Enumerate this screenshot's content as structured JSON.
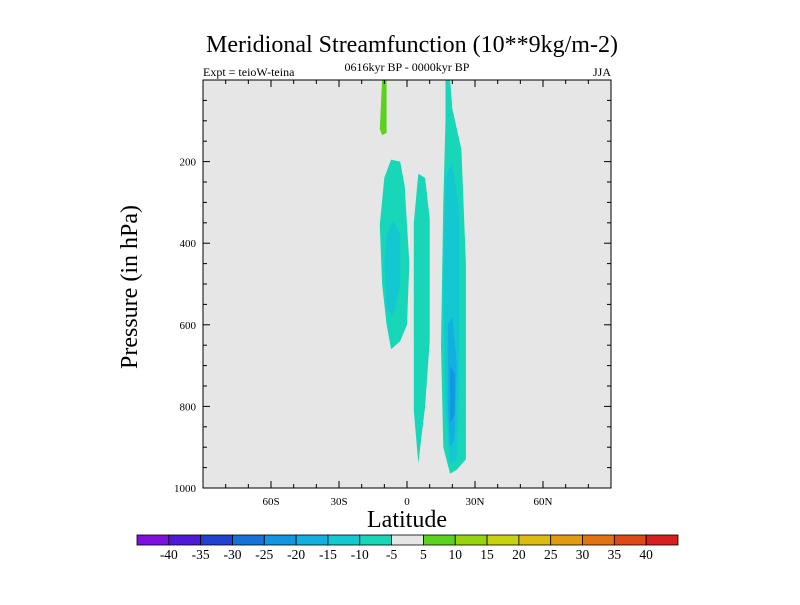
{
  "chart_data": {
    "type": "heatmap",
    "title": "Meridional Streamfunction (10**9kg/m-2)",
    "left_label": "Expt = teioW-teina",
    "center_label": "0616kyr BP - 0000kyr BP",
    "right_label": "JJA",
    "xlabel": "Latitude",
    "ylabel": "Pressure (in hPa)",
    "xlim": [
      -90,
      90
    ],
    "ylim": [
      1000,
      0
    ],
    "x_ticks": [
      {
        "value": -60,
        "label": "60S"
      },
      {
        "value": -30,
        "label": "30S"
      },
      {
        "value": 0,
        "label": "0"
      },
      {
        "value": 30,
        "label": "30N"
      },
      {
        "value": 60,
        "label": "60N"
      }
    ],
    "y_ticks": [
      {
        "value": 200,
        "label": "200"
      },
      {
        "value": 400,
        "label": "400"
      },
      {
        "value": 600,
        "label": "600"
      },
      {
        "value": 800,
        "label": "800"
      },
      {
        "value": 1000,
        "label": "1000"
      }
    ],
    "background_color": "#e6e6e6",
    "contour_levels": [
      -40,
      -35,
      -30,
      -25,
      -20,
      -15,
      -10,
      -5,
      5,
      10,
      15,
      20,
      25,
      30,
      35,
      40
    ],
    "colorbar_colors": [
      "#7f10e0",
      "#4f1ad6",
      "#2240d2",
      "#1672d8",
      "#1296e2",
      "#12b0e0",
      "#14c8d2",
      "#18d6b8",
      "#e6e6e6",
      "#5ad21e",
      "#96d40e",
      "#c8d20e",
      "#dcbc10",
      "#e29a10",
      "#e27212",
      "#e04816",
      "#d81e1e"
    ],
    "regions": [
      {
        "name": "positive-cell-north-of-equator-upper",
        "fill": "#5ad21e",
        "points": [
          [
            -11,
            0
          ],
          [
            -9,
            0
          ],
          [
            -9,
            130
          ],
          [
            -11,
            135
          ],
          [
            -12,
            120
          ]
        ]
      },
      {
        "name": "negative-cell-southern",
        "fill": "#18d6b8",
        "points": [
          [
            -12,
            355
          ],
          [
            -10,
            240
          ],
          [
            -7,
            195
          ],
          [
            -3,
            200
          ],
          [
            -1,
            260
          ],
          [
            1,
            450
          ],
          [
            0,
            600
          ],
          [
            -3,
            640
          ],
          [
            -7,
            660
          ],
          [
            -9,
            600
          ],
          [
            -11,
            500
          ]
        ]
      },
      {
        "name": "negative-cell-southern-core",
        "fill": "#14c8d2",
        "points": [
          [
            -10,
            450
          ],
          [
            -9,
            380
          ],
          [
            -6,
            345
          ],
          [
            -3,
            380
          ],
          [
            -3,
            500
          ],
          [
            -6,
            580
          ],
          [
            -9,
            560
          ]
        ]
      },
      {
        "name": "negative-cell-central",
        "fill": "#18d6b8",
        "points": [
          [
            3,
            350
          ],
          [
            5,
            230
          ],
          [
            8,
            240
          ],
          [
            10,
            340
          ],
          [
            10,
            640
          ],
          [
            8,
            800
          ],
          [
            5,
            940
          ],
          [
            3,
            810
          ]
        ]
      },
      {
        "name": "negative-cell-northern",
        "fill": "#18d6b8",
        "points": [
          [
            17,
            0
          ],
          [
            19,
            0
          ],
          [
            20,
            70
          ],
          [
            24,
            170
          ],
          [
            26,
            450
          ],
          [
            26,
            930
          ],
          [
            22,
            955
          ],
          [
            19,
            965
          ],
          [
            16,
            900
          ],
          [
            15,
            650
          ],
          [
            16,
            300
          ],
          [
            17,
            100
          ]
        ]
      },
      {
        "name": "negative-cell-northern-mid",
        "fill": "#14c8d2",
        "points": [
          [
            17,
            240
          ],
          [
            20,
            200
          ],
          [
            23,
            320
          ],
          [
            23,
            760
          ],
          [
            22,
            930
          ],
          [
            19,
            940
          ],
          [
            17,
            800
          ],
          [
            16,
            500
          ]
        ]
      },
      {
        "name": "negative-cell-northern-core",
        "fill": "#12b0e0",
        "points": [
          [
            18,
            600
          ],
          [
            20,
            580
          ],
          [
            22,
            700
          ],
          [
            21,
            880
          ],
          [
            19,
            900
          ],
          [
            18,
            800
          ]
        ]
      },
      {
        "name": "negative-cell-northern-max",
        "fill": "#1296e2",
        "points": [
          [
            19,
            700
          ],
          [
            21,
            720
          ],
          [
            21,
            820
          ],
          [
            19,
            840
          ]
        ]
      }
    ]
  }
}
